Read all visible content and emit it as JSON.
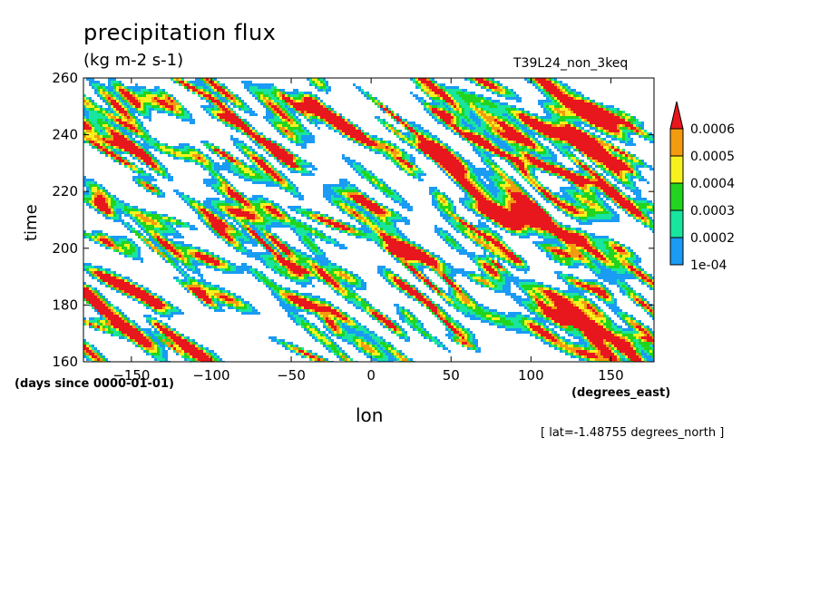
{
  "chart_data": {
    "type": "heatmap",
    "title": "precipitation flux",
    "units": "(kg m-2 s-1)",
    "run_name": "T39L24_non_3keq",
    "xlabel": "lon",
    "ylabel": "time",
    "x_units": "(degrees_east)",
    "y_units": "(days since 0000-01-01)",
    "annotation": "[ lat=-1.48755 degrees_north ]",
    "xlim": [
      -180,
      177
    ],
    "ylim": [
      160,
      260
    ],
    "x_ticks": [
      -150,
      -100,
      -50,
      0,
      50,
      100,
      150
    ],
    "x_tick_labels": [
      "−150",
      "−100",
      "−50",
      "0",
      "50",
      "100",
      "150"
    ],
    "y_ticks": [
      160,
      180,
      200,
      220,
      240,
      260
    ],
    "y_tick_labels": [
      "160",
      "180",
      "200",
      "220",
      "240",
      "260"
    ],
    "contour_levels": [
      0.0001,
      0.0002,
      0.0003,
      0.0004,
      0.0005,
      0.0006
    ],
    "colorbar": {
      "labels": [
        "0.0006",
        "0.0005",
        "0.0004",
        "0.0003",
        "0.0002",
        "1e-04"
      ],
      "colors": [
        "#e8161d",
        "#f39b0f",
        "#f7f21e",
        "#22d41e",
        "#18e59e",
        "#1a9bf4"
      ],
      "extend": "max"
    },
    "fill_colors": {
      "band_1e-4_2e-4": "#1a9bf4",
      "band_2e-4_3e-4": "#18e59e",
      "band_3e-4_4e-4": "#22d41e",
      "band_4e-4_5e-4": "#f7f21e",
      "band_5e-4_6e-4": "#f39b0f",
      "above_6e-4": "#e8161d"
    },
    "grid": false
  }
}
